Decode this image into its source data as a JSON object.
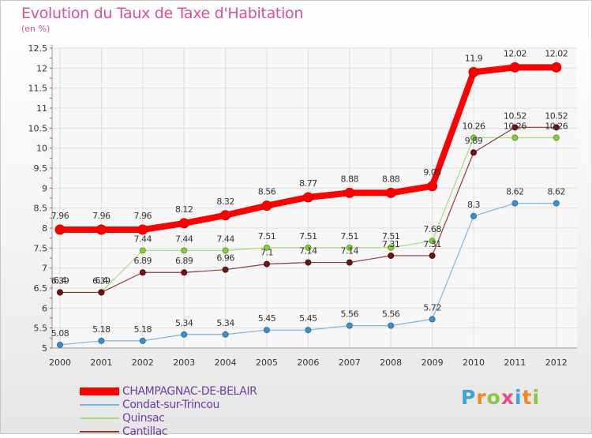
{
  "header": {
    "title": "Evolution du Taux de Taxe d'Habitation",
    "subtitle": "(en %)"
  },
  "logo": {
    "text": "Proxiti"
  },
  "chart_data": {
    "type": "line",
    "categories": [
      "2000",
      "2001",
      "2002",
      "2003",
      "2004",
      "2005",
      "2006",
      "2007",
      "2008",
      "2009",
      "2010",
      "2011",
      "2012"
    ],
    "ylim": [
      5,
      12.5
    ],
    "yticks": [
      "5",
      "5.5",
      "6",
      "6.5",
      "7",
      "7.5",
      "8",
      "8.5",
      "9",
      "9.5",
      "10",
      "10.5",
      "11",
      "11.5",
      "12",
      "12.5"
    ],
    "grid": true,
    "legend_position": "bottom-left",
    "series": [
      {
        "name": "CHAMPAGNAC-DE-BELAIR",
        "color": "#ff0000",
        "labels": [
          "7.96",
          "7.96",
          "7.96",
          "8.12",
          "8.32",
          "8.56",
          "8.77",
          "8.88",
          "8.88",
          "9.05",
          "11.9",
          "12.02",
          "12.02"
        ],
        "values": [
          7.96,
          7.96,
          7.96,
          8.12,
          8.32,
          8.56,
          8.77,
          8.88,
          8.88,
          9.05,
          11.9,
          12.02,
          12.02
        ]
      },
      {
        "name": "Condat-sur-Trincou",
        "color": "#7fb4d9",
        "labels": [
          "5.08",
          "5.18",
          "5.18",
          "5.34",
          "5.34",
          "5.45",
          "5.45",
          "5.56",
          "5.56",
          "5.72",
          "8.3",
          "8.62",
          "8.62"
        ],
        "values": [
          5.08,
          5.18,
          5.18,
          5.34,
          5.34,
          5.45,
          5.45,
          5.56,
          5.56,
          5.72,
          8.3,
          8.62,
          8.62
        ]
      },
      {
        "name": "Quinsac",
        "color": "#a8dc7a",
        "labels": [
          "6.4",
          "6.4",
          "7.44",
          "7.44",
          "7.44",
          "7.51",
          "7.51",
          "7.51",
          "7.51",
          "7.68",
          "10.26",
          "10.26",
          "10.26"
        ],
        "values": [
          6.4,
          6.4,
          7.44,
          7.44,
          7.44,
          7.51,
          7.51,
          7.51,
          7.51,
          7.68,
          10.26,
          10.26,
          10.26
        ]
      },
      {
        "name": "Cantillac",
        "color": "#8a3b3b",
        "labels": [
          "6.39",
          "6.39",
          "6.89",
          "6.89",
          "6.96",
          "7.1",
          "7.14",
          "7.14",
          "7.31",
          "7.31",
          "9.89",
          "10.52",
          "10.52"
        ],
        "values": [
          6.39,
          6.39,
          6.89,
          6.89,
          6.96,
          7.1,
          7.14,
          7.14,
          7.31,
          7.31,
          9.89,
          10.52,
          10.52
        ]
      }
    ]
  }
}
